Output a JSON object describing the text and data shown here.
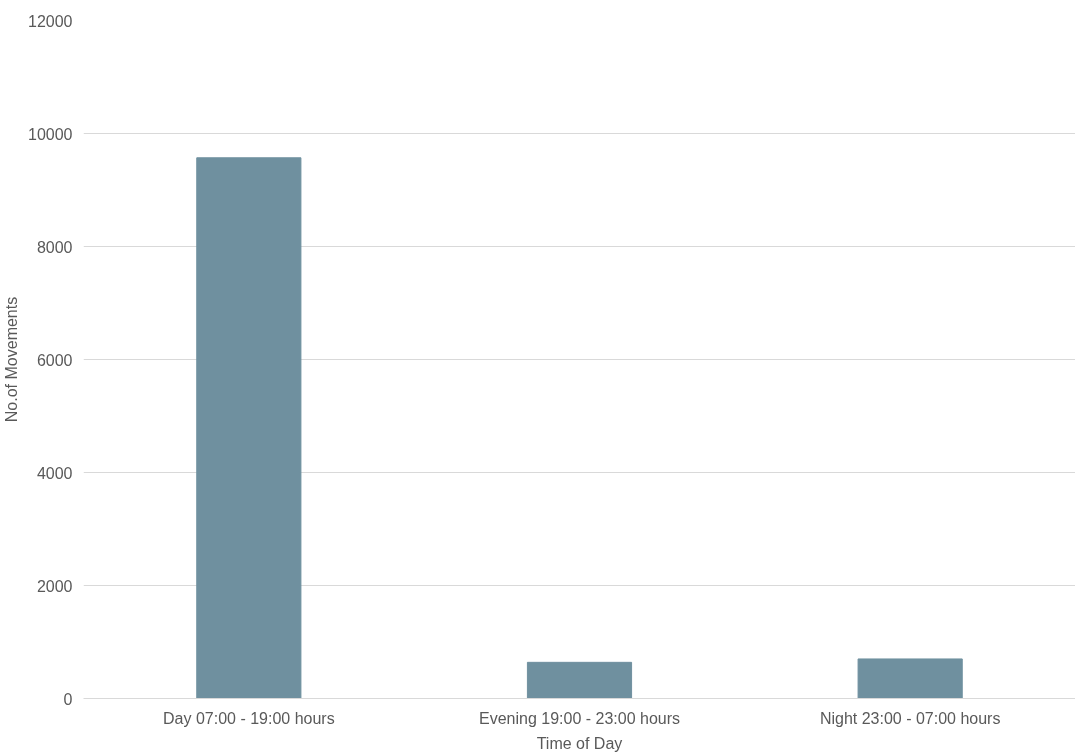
{
  "chart_data": {
    "type": "bar",
    "xlabel": "Time of Day",
    "ylabel": "No.of Movements",
    "categories": [
      "Day 07:00 - 19:00 hours",
      "Evening 19:00 - 23:00 hours",
      "Night 23:00 - 07:00 hours"
    ],
    "values": [
      9570,
      640,
      700
    ],
    "color": "#6f909f",
    "ylim": [
      0,
      12000
    ],
    "yticks": [
      0,
      2000,
      4000,
      6000,
      8000,
      10000,
      12000
    ],
    "grid": "y"
  }
}
